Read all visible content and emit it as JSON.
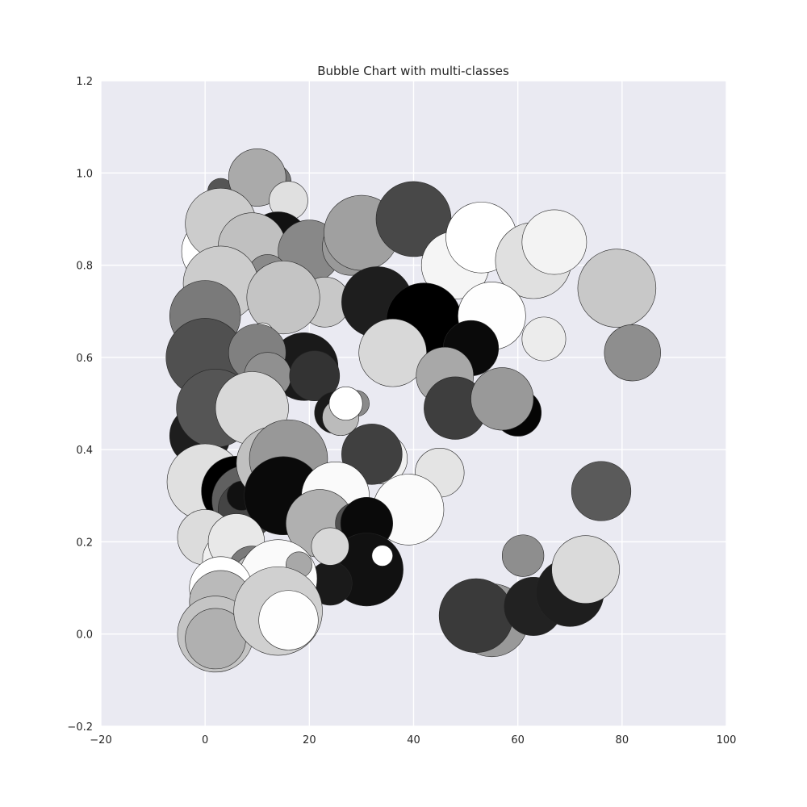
{
  "chart_data": {
    "type": "scatter",
    "title": "Bubble Chart with multi-classes",
    "xlabel": "",
    "ylabel": "",
    "xlim": [
      -20,
      100
    ],
    "ylim": [
      -0.2,
      1.2
    ],
    "xticks": [
      -20,
      0,
      20,
      40,
      60,
      80,
      100
    ],
    "yticks": [
      -0.2,
      0.0,
      0.2,
      0.4,
      0.6,
      0.8,
      1.0,
      1.2
    ],
    "xtick_labels": [
      "−20",
      "0",
      "20",
      "40",
      "60",
      "80",
      "100"
    ],
    "ytick_labels": [
      "−0.2",
      "0.0",
      "0.2",
      "0.4",
      "0.6",
      "0.8",
      "1.0",
      "1.2"
    ],
    "grid": true,
    "background_color": "#eaeaf2",
    "grid_color": "#ffffff",
    "points": [
      {
        "x": 3,
        "y": 0.96,
        "size": 2.5,
        "color": "#555555"
      },
      {
        "x": 13,
        "y": 0.98,
        "size": 3.5,
        "color": "#777777"
      },
      {
        "x": 10,
        "y": 0.99,
        "size": 5.5,
        "color": "#aaaaaa"
      },
      {
        "x": 16,
        "y": 0.94,
        "size": 3.7,
        "color": "#e0e0e0"
      },
      {
        "x": 2,
        "y": 0.83,
        "size": 6.5,
        "color": "#ffffff"
      },
      {
        "x": 4,
        "y": 0.8,
        "size": 5.5,
        "color": "#999999"
      },
      {
        "x": 3,
        "y": 0.89,
        "size": 6.8,
        "color": "#cccccc"
      },
      {
        "x": 14,
        "y": 0.85,
        "size": 5.8,
        "color": "#111111"
      },
      {
        "x": 9,
        "y": 0.84,
        "size": 6.5,
        "color": "#c0c0c0"
      },
      {
        "x": 20,
        "y": 0.83,
        "size": 6.0,
        "color": "#888888"
      },
      {
        "x": 28,
        "y": 0.84,
        "size": 5.5,
        "color": "#999999"
      },
      {
        "x": 30,
        "y": 0.87,
        "size": 7.2,
        "color": "#a0a0a0"
      },
      {
        "x": 40,
        "y": 0.9,
        "size": 7.2,
        "color": "#484848"
      },
      {
        "x": 48,
        "y": 0.8,
        "size": 6.5,
        "color": "#f5f5f5"
      },
      {
        "x": 53,
        "y": 0.86,
        "size": 6.8,
        "color": "#ffffff"
      },
      {
        "x": 63,
        "y": 0.81,
        "size": 7.3,
        "color": "#e0e0e0"
      },
      {
        "x": 67,
        "y": 0.85,
        "size": 6.2,
        "color": "#f3f3f3"
      },
      {
        "x": 79,
        "y": 0.75,
        "size": 7.5,
        "color": "#c8c8c8"
      },
      {
        "x": 12,
        "y": 0.78,
        "size": 3.8,
        "color": "#8a8a8a"
      },
      {
        "x": 23,
        "y": 0.72,
        "size": 4.8,
        "color": "#c8c8c8"
      },
      {
        "x": 33,
        "y": 0.72,
        "size": 6.8,
        "color": "#1e1e1e"
      },
      {
        "x": 3,
        "y": 0.76,
        "size": 7.2,
        "color": "#cccccc"
      },
      {
        "x": 15,
        "y": 0.73,
        "size": 7.0,
        "color": "#c4c4c4"
      },
      {
        "x": 0,
        "y": 0.69,
        "size": 6.8,
        "color": "#7a7a7a"
      },
      {
        "x": 42,
        "y": 0.68,
        "size": 7.2,
        "color": "#000000"
      },
      {
        "x": 55,
        "y": 0.69,
        "size": 6.5,
        "color": "#fefefe"
      },
      {
        "x": 65,
        "y": 0.64,
        "size": 4.2,
        "color": "#ececec"
      },
      {
        "x": 11,
        "y": 0.65,
        "size": 2.2,
        "color": "#ffffff"
      },
      {
        "x": 0,
        "y": 0.6,
        "size": 7.5,
        "color": "#505050"
      },
      {
        "x": 19,
        "y": 0.58,
        "size": 6.5,
        "color": "#1a1a1a"
      },
      {
        "x": 10,
        "y": 0.61,
        "size": 5.5,
        "color": "#808080"
      },
      {
        "x": 12,
        "y": 0.56,
        "size": 4.5,
        "color": "#909090"
      },
      {
        "x": 21,
        "y": 0.56,
        "size": 4.8,
        "color": "#333333"
      },
      {
        "x": 36,
        "y": 0.61,
        "size": 6.5,
        "color": "#d8d8d8"
      },
      {
        "x": 51,
        "y": 0.62,
        "size": 5.3,
        "color": "#0a0a0a"
      },
      {
        "x": 46,
        "y": 0.56,
        "size": 5.5,
        "color": "#a8a8a8"
      },
      {
        "x": 82,
        "y": 0.61,
        "size": 5.4,
        "color": "#8e8e8e"
      },
      {
        "x": 60,
        "y": 0.48,
        "size": 4.5,
        "color": "#050505"
      },
      {
        "x": 48,
        "y": 0.49,
        "size": 6.0,
        "color": "#3e3e3e"
      },
      {
        "x": 57,
        "y": 0.51,
        "size": 6.0,
        "color": "#999999"
      },
      {
        "x": -1,
        "y": 0.43,
        "size": 5.8,
        "color": "#1e1e1e"
      },
      {
        "x": 2,
        "y": 0.49,
        "size": 7.5,
        "color": "#555555"
      },
      {
        "x": 7,
        "y": 0.46,
        "size": 3.2,
        "color": "#333333"
      },
      {
        "x": 9,
        "y": 0.49,
        "size": 7.0,
        "color": "#d8d8d8"
      },
      {
        "x": 25,
        "y": 0.48,
        "size": 4.0,
        "color": "#1a1a1a"
      },
      {
        "x": 29,
        "y": 0.5,
        "size": 2.5,
        "color": "#8a8a8a"
      },
      {
        "x": 26,
        "y": 0.47,
        "size": 3.5,
        "color": "#bbbbbb"
      },
      {
        "x": 27,
        "y": 0.5,
        "size": 3.2,
        "color": "#ffffff"
      },
      {
        "x": 34,
        "y": 0.38,
        "size": 4.8,
        "color": "#f0f0f0"
      },
      {
        "x": 45,
        "y": 0.35,
        "size": 4.7,
        "color": "#e4e4e4"
      },
      {
        "x": 32,
        "y": 0.39,
        "size": 5.8,
        "color": "#404040"
      },
      {
        "x": 76,
        "y": 0.31,
        "size": 5.7,
        "color": "#5a5a5a"
      },
      {
        "x": 0,
        "y": 0.33,
        "size": 7.3,
        "color": "#e0e0e0"
      },
      {
        "x": 6,
        "y": 0.31,
        "size": 6.7,
        "color": "#000000"
      },
      {
        "x": 8,
        "y": 0.29,
        "size": 6.7,
        "color": "#606060"
      },
      {
        "x": 8,
        "y": 0.27,
        "size": 5.5,
        "color": "#444444"
      },
      {
        "x": 7,
        "y": 0.3,
        "size": 2.8,
        "color": "#111111"
      },
      {
        "x": 13,
        "y": 0.37,
        "size": 7.0,
        "color": "#c0c0c0"
      },
      {
        "x": 16,
        "y": 0.38,
        "size": 7.5,
        "color": "#989898"
      },
      {
        "x": 15,
        "y": 0.3,
        "size": 7.5,
        "color": "#0a0a0a"
      },
      {
        "x": 25,
        "y": 0.3,
        "size": 6.5,
        "color": "#fafafa"
      },
      {
        "x": 39,
        "y": 0.27,
        "size": 6.8,
        "color": "#fbfbfb"
      },
      {
        "x": 22,
        "y": 0.24,
        "size": 6.5,
        "color": "#b0b0b0"
      },
      {
        "x": 29,
        "y": 0.24,
        "size": 4.0,
        "color": "#505050"
      },
      {
        "x": 31,
        "y": 0.24,
        "size": 5.0,
        "color": "#0a0a0a"
      },
      {
        "x": 31,
        "y": 0.14,
        "size": 7.0,
        "color": "#111111"
      },
      {
        "x": 24,
        "y": 0.11,
        "size": 4.2,
        "color": "#1a1a1a"
      },
      {
        "x": 34,
        "y": 0.17,
        "size": 2.0,
        "color": "#ffffff"
      },
      {
        "x": 24,
        "y": 0.19,
        "size": 3.6,
        "color": "#d8d8d8"
      },
      {
        "x": 0,
        "y": 0.21,
        "size": 5.3,
        "color": "#dcdcdc"
      },
      {
        "x": 5,
        "y": 0.16,
        "size": 5.5,
        "color": "#f0f0f0"
      },
      {
        "x": 6,
        "y": 0.2,
        "size": 5.4,
        "color": "#e8e8e8"
      },
      {
        "x": 9,
        "y": 0.14,
        "size": 4.5,
        "color": "#7a7a7a"
      },
      {
        "x": 10,
        "y": 0.12,
        "size": 4.8,
        "color": "#c4c4c4"
      },
      {
        "x": 14,
        "y": 0.12,
        "size": 7.5,
        "color": "#fafafa"
      },
      {
        "x": 18,
        "y": 0.15,
        "size": 2.5,
        "color": "#a8a8a8"
      },
      {
        "x": 3,
        "y": 0.1,
        "size": 6.0,
        "color": "#ffffff"
      },
      {
        "x": 3,
        "y": 0.07,
        "size": 6.0,
        "color": "#bababa"
      },
      {
        "x": 1,
        "y": 0.02,
        "size": 4.0,
        "color": "#111111"
      },
      {
        "x": 2,
        "y": 0.0,
        "size": 7.3,
        "color": "#c4c4c4"
      },
      {
        "x": 2,
        "y": -0.01,
        "size": 5.8,
        "color": "#b0b0b0"
      },
      {
        "x": 14,
        "y": 0.05,
        "size": 8.5,
        "color": "#d0d0d0"
      },
      {
        "x": 16,
        "y": 0.03,
        "size": 5.7,
        "color": "#fefefe"
      },
      {
        "x": 61,
        "y": 0.17,
        "size": 4.0,
        "color": "#8e8e8e"
      },
      {
        "x": 55,
        "y": 0.03,
        "size": 7.0,
        "color": "#999999"
      },
      {
        "x": 52,
        "y": 0.04,
        "size": 7.1,
        "color": "#3a3a3a"
      },
      {
        "x": 63,
        "y": 0.06,
        "size": 5.6,
        "color": "#222222"
      },
      {
        "x": 70,
        "y": 0.09,
        "size": 6.5,
        "color": "#1e1e1e"
      },
      {
        "x": 73,
        "y": 0.14,
        "size": 6.5,
        "color": "#dadada"
      }
    ]
  }
}
